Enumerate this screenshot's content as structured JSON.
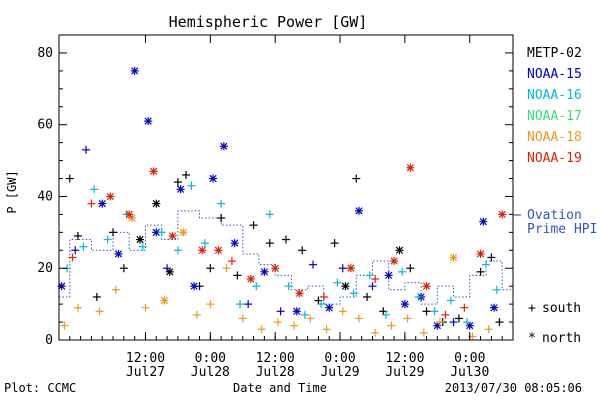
{
  "chart_data": {
    "type": "scatter",
    "title": "Hemispheric Power [GW]",
    "ylabel": "P [GW]",
    "xlabel": "Date and Time",
    "ylim": [
      0,
      85
    ],
    "xlim": [
      "2013-07-26T20:00",
      "2013-07-30T08:00"
    ],
    "yticks": [
      0,
      20,
      40,
      60,
      80
    ],
    "xticks": [
      {
        "t": "2013-07-27T12:00",
        "line1": "12:00",
        "line2": "Jul27"
      },
      {
        "t": "2013-07-28T00:00",
        "line1": "0:00",
        "line2": "Jul28"
      },
      {
        "t": "2013-07-28T12:00",
        "line1": "12:00",
        "line2": "Jul28"
      },
      {
        "t": "2013-07-29T00:00",
        "line1": "0:00",
        "line2": "Jul29"
      },
      {
        "t": "2013-07-29T12:00",
        "line1": "12:00",
        "line2": "Jul29"
      },
      {
        "t": "2013-07-30T00:00",
        "line1": "0:00",
        "line2": "Jul30"
      }
    ],
    "legend_placement": "right",
    "series": [
      {
        "name": "METP-02",
        "color": "#000000",
        "points": [
          [
            "2013-07-26T22:00",
            45,
            "s"
          ],
          [
            "2013-07-26T23:30",
            29,
            "s"
          ],
          [
            "2013-07-27T03:00",
            12,
            "s"
          ],
          [
            "2013-07-27T06:00",
            30,
            "s"
          ],
          [
            "2013-07-27T08:00",
            20,
            "s"
          ],
          [
            "2013-07-27T11:00",
            28,
            "n"
          ],
          [
            "2013-07-27T14:00",
            38,
            "n"
          ],
          [
            "2013-07-27T16:30",
            19,
            "n"
          ],
          [
            "2013-07-27T18:00",
            44,
            "s"
          ],
          [
            "2013-07-27T19:30",
            46,
            "s"
          ],
          [
            "2013-07-27T22:00",
            15,
            "s"
          ],
          [
            "2013-07-28T00:00",
            20,
            "s"
          ],
          [
            "2013-07-28T02:00",
            34,
            "s"
          ],
          [
            "2013-07-28T05:00",
            18,
            "s"
          ],
          [
            "2013-07-28T08:00",
            32,
            "s"
          ],
          [
            "2013-07-28T11:00",
            27,
            "s"
          ],
          [
            "2013-07-28T14:00",
            28,
            "s"
          ],
          [
            "2013-07-28T17:00",
            25,
            "s"
          ],
          [
            "2013-07-28T20:00",
            11,
            "s"
          ],
          [
            "2013-07-28T23:00",
            27,
            "s"
          ],
          [
            "2013-07-29T01:00",
            15,
            "n"
          ],
          [
            "2013-07-29T03:00",
            45,
            "s"
          ],
          [
            "2013-07-29T05:00",
            12,
            "s"
          ],
          [
            "2013-07-29T08:00",
            8,
            "s"
          ],
          [
            "2013-07-29T11:00",
            25,
            "n"
          ],
          [
            "2013-07-29T13:00",
            20,
            "s"
          ],
          [
            "2013-07-29T16:00",
            8,
            "s"
          ],
          [
            "2013-07-29T19:00",
            5,
            "s"
          ],
          [
            "2013-07-29T22:00",
            6,
            "s"
          ],
          [
            "2013-07-30T02:00",
            19,
            "s"
          ],
          [
            "2013-07-30T04:00",
            23,
            "s"
          ],
          [
            "2013-07-30T05:30",
            5,
            "s"
          ]
        ]
      },
      {
        "name": "NOAA-15",
        "color": "#0000cc",
        "points": [
          [
            "2013-07-26T20:30",
            15,
            "n"
          ],
          [
            "2013-07-26T23:00",
            25,
            "s"
          ],
          [
            "2013-07-27T01:00",
            53,
            "s"
          ],
          [
            "2013-07-27T04:00",
            38,
            "n"
          ],
          [
            "2013-07-27T07:00",
            24,
            "n"
          ],
          [
            "2013-07-27T10:00",
            75,
            "n"
          ],
          [
            "2013-07-27T12:30",
            61,
            "n"
          ],
          [
            "2013-07-27T14:00",
            30,
            "n"
          ],
          [
            "2013-07-27T16:00",
            20,
            "s"
          ],
          [
            "2013-07-27T18:30",
            42,
            "n"
          ],
          [
            "2013-07-27T21:00",
            15,
            "n"
          ],
          [
            "2013-07-28T00:30",
            45,
            "n"
          ],
          [
            "2013-07-28T02:30",
            54,
            "n"
          ],
          [
            "2013-07-28T04:30",
            27,
            "n"
          ],
          [
            "2013-07-28T07:00",
            10,
            "s"
          ],
          [
            "2013-07-28T10:00",
            19,
            "n"
          ],
          [
            "2013-07-28T13:00",
            8,
            "s"
          ],
          [
            "2013-07-28T16:00",
            8,
            "n"
          ],
          [
            "2013-07-28T19:00",
            21,
            "s"
          ],
          [
            "2013-07-28T22:00",
            9,
            "n"
          ],
          [
            "2013-07-29T00:30",
            20,
            "s"
          ],
          [
            "2013-07-29T03:30",
            36,
            "n"
          ],
          [
            "2013-07-29T06:00",
            15,
            "s"
          ],
          [
            "2013-07-29T09:00",
            18,
            "n"
          ],
          [
            "2013-07-29T12:00",
            10,
            "n"
          ],
          [
            "2013-07-29T15:00",
            12,
            "n"
          ],
          [
            "2013-07-29T18:00",
            4,
            "n"
          ],
          [
            "2013-07-29T21:00",
            5,
            "s"
          ],
          [
            "2013-07-30T00:00",
            4,
            "n"
          ],
          [
            "2013-07-30T02:30",
            33,
            "n"
          ],
          [
            "2013-07-30T04:30",
            9,
            "n"
          ]
        ]
      },
      {
        "name": "NOAA-16",
        "color": "#00bbdd",
        "points": [
          [
            "2013-07-26T21:30",
            20,
            "s"
          ],
          [
            "2013-07-27T00:30",
            26,
            "s"
          ],
          [
            "2013-07-27T02:30",
            42,
            "s"
          ],
          [
            "2013-07-27T05:00",
            28,
            "s"
          ],
          [
            "2013-07-27T08:30",
            35,
            "s"
          ],
          [
            "2013-07-27T11:30",
            26,
            "s"
          ],
          [
            "2013-07-27T15:00",
            30,
            "s"
          ],
          [
            "2013-07-27T18:00",
            25,
            "s"
          ],
          [
            "2013-07-27T20:30",
            43,
            "s"
          ],
          [
            "2013-07-27T23:00",
            27,
            "s"
          ],
          [
            "2013-07-28T02:00",
            38,
            "s"
          ],
          [
            "2013-07-28T05:30",
            10,
            "s"
          ],
          [
            "2013-07-28T08:30",
            15,
            "s"
          ],
          [
            "2013-07-28T11:00",
            35,
            "s"
          ],
          [
            "2013-07-28T14:30",
            15,
            "s"
          ],
          [
            "2013-07-28T17:30",
            7,
            "s"
          ],
          [
            "2013-07-28T20:30",
            10,
            "s"
          ],
          [
            "2013-07-28T23:30",
            16,
            "s"
          ],
          [
            "2013-07-29T02:30",
            13,
            "s"
          ],
          [
            "2013-07-29T05:30",
            18,
            "s"
          ],
          [
            "2013-07-29T08:30",
            7,
            "s"
          ],
          [
            "2013-07-29T11:30",
            19,
            "s"
          ],
          [
            "2013-07-29T14:30",
            12,
            "s"
          ],
          [
            "2013-07-29T17:30",
            8,
            "s"
          ],
          [
            "2013-07-29T20:30",
            11,
            "s"
          ],
          [
            "2013-07-29T23:30",
            5,
            "s"
          ],
          [
            "2013-07-30T03:00",
            21,
            "s"
          ],
          [
            "2013-07-30T05:00",
            14,
            "s"
          ]
        ]
      },
      {
        "name": "NOAA-17",
        "color": "#33dd77",
        "points": []
      },
      {
        "name": "NOAA-18",
        "color": "#ee9922",
        "points": [
          [
            "2013-07-26T21:00",
            4,
            "s"
          ],
          [
            "2013-07-26T23:30",
            9,
            "s"
          ],
          [
            "2013-07-27T03:30",
            8,
            "s"
          ],
          [
            "2013-07-27T06:30",
            14,
            "s"
          ],
          [
            "2013-07-27T09:30",
            34,
            "n"
          ],
          [
            "2013-07-27T12:00",
            9,
            "s"
          ],
          [
            "2013-07-27T15:30",
            11,
            "n"
          ],
          [
            "2013-07-27T19:00",
            30,
            "n"
          ],
          [
            "2013-07-27T21:30",
            7,
            "s"
          ],
          [
            "2013-07-28T00:00",
            10,
            "s"
          ],
          [
            "2013-07-28T03:00",
            20,
            "s"
          ],
          [
            "2013-07-28T06:00",
            6,
            "s"
          ],
          [
            "2013-07-28T09:30",
            3,
            "s"
          ],
          [
            "2013-07-28T12:30",
            5,
            "s"
          ],
          [
            "2013-07-28T15:30",
            4,
            "s"
          ],
          [
            "2013-07-28T18:30",
            6,
            "s"
          ],
          [
            "2013-07-28T21:30",
            3,
            "s"
          ],
          [
            "2013-07-29T00:30",
            8,
            "s"
          ],
          [
            "2013-07-29T03:30",
            6,
            "s"
          ],
          [
            "2013-07-29T06:30",
            2,
            "s"
          ],
          [
            "2013-07-29T09:30",
            4,
            "s"
          ],
          [
            "2013-07-29T12:30",
            6,
            "s"
          ],
          [
            "2013-07-29T15:30",
            2,
            "s"
          ],
          [
            "2013-07-29T18:30",
            5,
            "s"
          ],
          [
            "2013-07-29T21:00",
            23,
            "n"
          ],
          [
            "2013-07-30T00:30",
            1,
            "s"
          ],
          [
            "2013-07-30T03:30",
            3,
            "s"
          ]
        ]
      },
      {
        "name": "NOAA-19",
        "color": "#dd2200",
        "points": [
          [
            "2013-07-26T22:30",
            23,
            "s"
          ],
          [
            "2013-07-27T02:00",
            38,
            "s"
          ],
          [
            "2013-07-27T05:30",
            40,
            "n"
          ],
          [
            "2013-07-27T09:00",
            35,
            "n"
          ],
          [
            "2013-07-27T13:30",
            47,
            "n"
          ],
          [
            "2013-07-27T17:00",
            29,
            "n"
          ],
          [
            "2013-07-27T22:30",
            25,
            "n"
          ],
          [
            "2013-07-28T01:30",
            25,
            "n"
          ],
          [
            "2013-07-28T04:00",
            22,
            "s"
          ],
          [
            "2013-07-28T07:30",
            17,
            "n"
          ],
          [
            "2013-07-28T12:00",
            20,
            "n"
          ],
          [
            "2013-07-28T16:30",
            13,
            "n"
          ],
          [
            "2013-07-28T21:00",
            12,
            "s"
          ],
          [
            "2013-07-29T02:00",
            20,
            "n"
          ],
          [
            "2013-07-29T06:30",
            17,
            "s"
          ],
          [
            "2013-07-29T10:00",
            22,
            "n"
          ],
          [
            "2013-07-29T13:00",
            48,
            "n"
          ],
          [
            "2013-07-29T16:00",
            15,
            "n"
          ],
          [
            "2013-07-29T19:30",
            7,
            "s"
          ],
          [
            "2013-07-29T23:00",
            9,
            "s"
          ],
          [
            "2013-07-30T02:00",
            24,
            "n"
          ],
          [
            "2013-07-30T06:00",
            35,
            "n"
          ]
        ]
      }
    ],
    "ovation": {
      "name": "Ovation Prime HPI",
      "legend_line1": "Ovation",
      "legend_line2": "Prime HPI",
      "color": "#3355cc",
      "steps": [
        [
          "2013-07-26T20:00",
          12
        ],
        [
          "2013-07-26T22:00",
          28
        ],
        [
          "2013-07-27T02:00",
          25
        ],
        [
          "2013-07-27T06:00",
          30
        ],
        [
          "2013-07-27T09:00",
          25
        ],
        [
          "2013-07-27T12:00",
          32
        ],
        [
          "2013-07-27T15:00",
          28
        ],
        [
          "2013-07-27T18:00",
          36
        ],
        [
          "2013-07-27T22:00",
          34
        ],
        [
          "2013-07-28T02:00",
          32
        ],
        [
          "2013-07-28T06:00",
          24
        ],
        [
          "2013-07-28T09:00",
          21
        ],
        [
          "2013-07-28T12:00",
          18
        ],
        [
          "2013-07-28T15:00",
          14
        ],
        [
          "2013-07-28T18:00",
          15
        ],
        [
          "2013-07-28T21:00",
          10
        ],
        [
          "2013-07-29T00:00",
          12
        ],
        [
          "2013-07-29T03:00",
          18
        ],
        [
          "2013-07-29T06:00",
          22
        ],
        [
          "2013-07-29T09:00",
          14
        ],
        [
          "2013-07-29T12:00",
          16
        ],
        [
          "2013-07-29T15:00",
          10
        ],
        [
          "2013-07-29T18:00",
          15
        ],
        [
          "2013-07-29T21:00",
          12
        ],
        [
          "2013-07-30T00:00",
          18
        ],
        [
          "2013-07-30T03:00",
          22
        ],
        [
          "2013-07-30T06:00",
          14
        ],
        [
          "2013-07-30T08:00",
          10
        ]
      ]
    },
    "marker_legend": {
      "south_symbol": "+",
      "south_label": "south",
      "north_symbol": "*",
      "north_label": "north"
    }
  },
  "footer": {
    "plot_credit": "Plot: CCMC",
    "timestamp": "2013/07/30 08:05:06"
  }
}
